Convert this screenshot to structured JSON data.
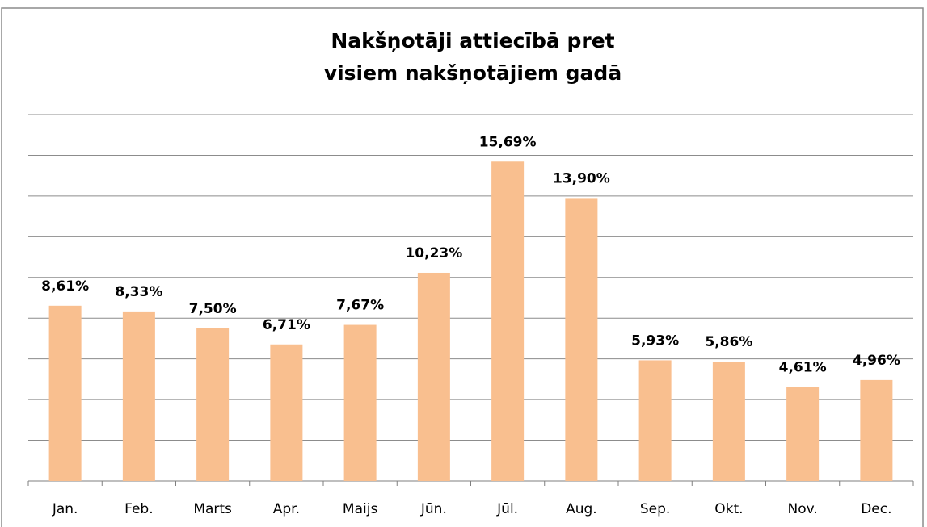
{
  "chart_data": {
    "type": "bar",
    "title": [
      "Nakšņotāji attiecībā pret",
      "visiem nakšņotājiem gadā"
    ],
    "categories": [
      "Jan.",
      "Feb.",
      "Marts",
      "Apr.",
      "Maijs",
      "Jūn.",
      "Jūl.",
      "Aug.",
      "Sep.",
      "Okt.",
      "Nov.",
      "Dec."
    ],
    "values": [
      8.61,
      8.33,
      7.5,
      6.71,
      7.67,
      10.23,
      15.69,
      13.9,
      5.93,
      5.86,
      4.61,
      4.96
    ],
    "value_labels": [
      "8,61%",
      "8,33%",
      "7,50%",
      "6,71%",
      "7,67%",
      "10,23%",
      "15,69%",
      "13,90%",
      "5,93%",
      "5,86%",
      "4,61%",
      "4,96%"
    ],
    "color": "#f9bf8f",
    "ylim": [
      0,
      18
    ],
    "yticks": [
      0,
      2,
      4,
      6,
      8,
      10,
      12,
      14,
      16,
      18
    ],
    "grid": true
  }
}
